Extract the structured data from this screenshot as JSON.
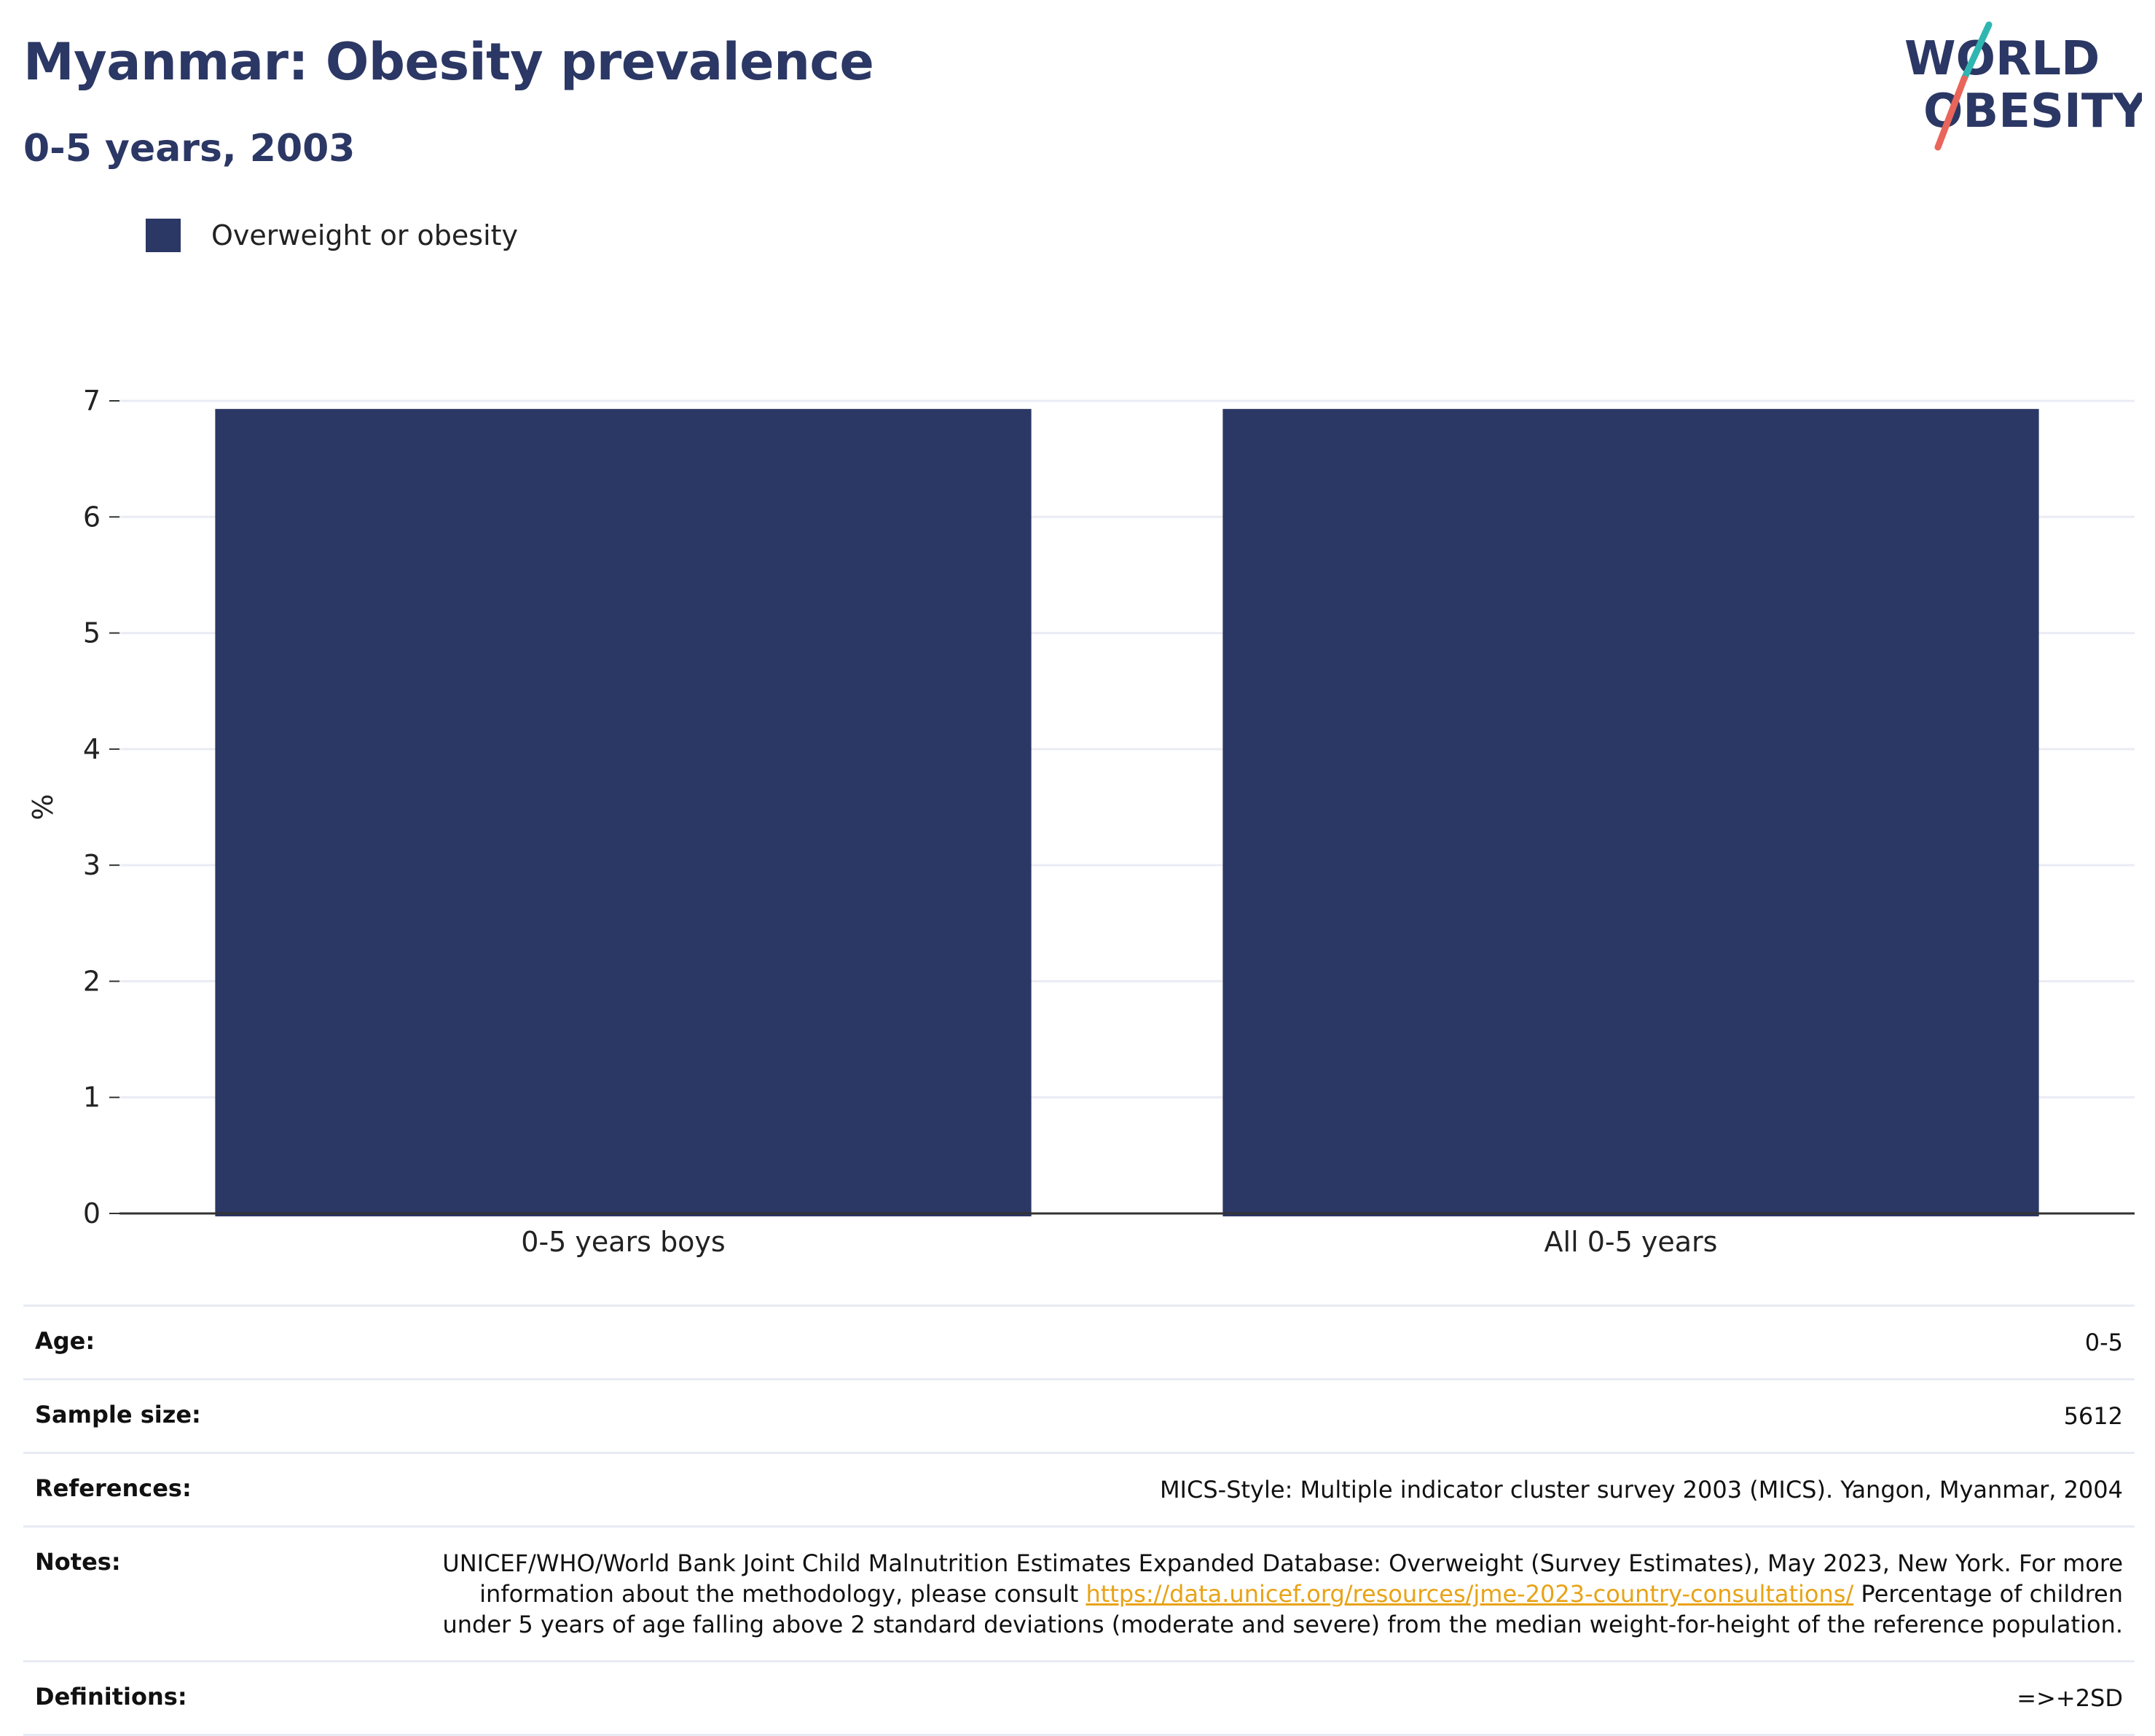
{
  "header": {
    "title": "Myanmar: Obesity prevalence",
    "subtitle": "0-5 years, 2003"
  },
  "logo": {
    "line1": "WORLD",
    "line2": "OBESITY",
    "colors": {
      "text": "#2b3764",
      "accent_teal": "#2fb6b1",
      "accent_red": "#e9655a"
    }
  },
  "legend": {
    "items": [
      {
        "label": "Overweight or obesity",
        "color": "#2b3764"
      }
    ]
  },
  "chart_data": {
    "type": "bar",
    "categories": [
      "0-5 years boys",
      "All 0-5 years"
    ],
    "series": [
      {
        "name": "Overweight or obesity",
        "values": [
          6.93,
          6.93
        ],
        "color": "#2b3764"
      }
    ],
    "ylabel": "%",
    "ylim": [
      0,
      7
    ],
    "yticks": [
      0,
      1,
      2,
      3,
      4,
      5,
      6,
      7
    ],
    "grid": true
  },
  "info": {
    "age_label": "Age:",
    "age_value": "0-5",
    "sample_label": "Sample size:",
    "sample_value": "5612",
    "references_label": "References:",
    "references_value": "MICS-Style: Multiple indicator cluster survey 2003 (MICS). Yangon, Myanmar, 2004",
    "notes_label": "Notes:",
    "notes_text_1": "UNICEF/WHO/World Bank Joint Child Malnutrition Estimates Expanded Database: Overweight (Survey Estimates), May 2023, New York. For more information about the methodology, please consult ",
    "notes_link": "https://data.unicef.org/resources/jme-2023-country-consultations/",
    "notes_text_2": " Percentage of children under 5 years of age falling above 2 standard deviations (moderate and severe) from the median weight-for-height of the reference population.",
    "definitions_label": "Definitions:",
    "definitions_value": "=>+2SD"
  }
}
